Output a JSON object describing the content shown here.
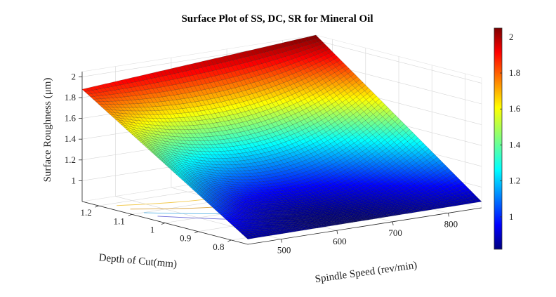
{
  "chart_data": {
    "type": "surface",
    "title": "Surface Plot of SS, DC, SR for Mineral Oil",
    "xlabel": "Spindle Speed (rev/min)",
    "ylabel": "Depth of Cut(mm)",
    "zlabel": "Surface Roughness (μm)",
    "x_ticks": [
      "500",
      "600",
      "700",
      "800"
    ],
    "y_ticks": [
      "0.8",
      "0.9",
      "1",
      "1.1",
      "1.2"
    ],
    "z_ticks": [
      "1",
      "1.2",
      "1.4",
      "1.6",
      "1.8",
      "2"
    ],
    "colorbar_ticks": [
      "1",
      "1.2",
      "1.4",
      "1.6",
      "1.8",
      "2"
    ],
    "xlim": [
      440,
      860
    ],
    "ylim": [
      0.75,
      1.25
    ],
    "zlim": [
      0.8,
      2.05
    ],
    "clim": [
      0.82,
      2.05
    ],
    "colormap": "jet",
    "corners": {
      "ss_440_dc_1.25": 1.88,
      "ss_860_dc_1.25": 2.05,
      "ss_440_dc_0.75": 0.85,
      "ss_860_dc_0.75": 0.86
    },
    "saddle_value": 1.02,
    "grid": true
  }
}
